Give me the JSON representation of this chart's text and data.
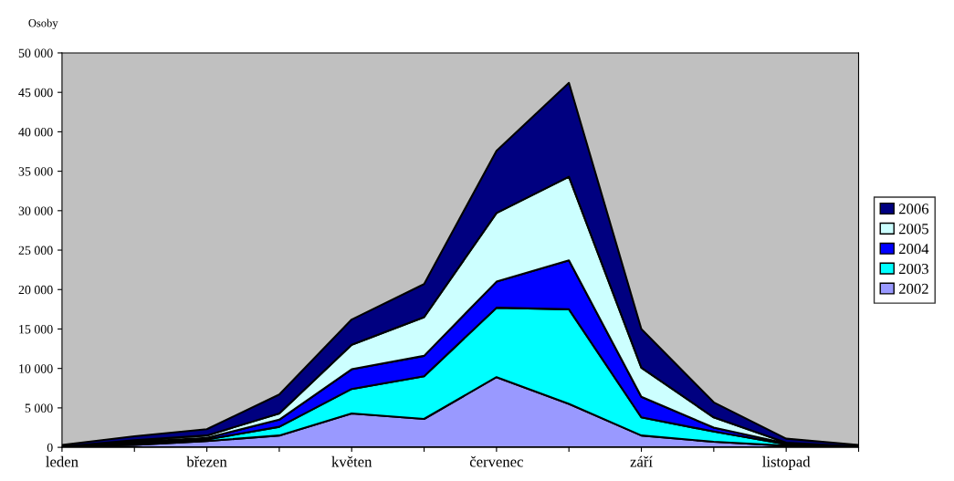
{
  "chart_data": {
    "type": "area",
    "stacked": true,
    "ylabel": "Osoby",
    "categories": [
      "leden",
      null,
      "březen",
      null,
      "květen",
      null,
      "červenec",
      null,
      "září",
      null,
      "listopad",
      null
    ],
    "series": [
      {
        "name": "2002",
        "color": "#9999ff",
        "values": [
          100,
          300,
          800,
          1500,
          4300,
          3600,
          8900,
          5500,
          1500,
          700,
          200,
          100
        ]
      },
      {
        "name": "2003",
        "color": "#00ffff",
        "values": [
          0,
          200,
          200,
          1100,
          3100,
          5400,
          8800,
          12000,
          2300,
          1300,
          200,
          0
        ]
      },
      {
        "name": "2004",
        "color": "#0000ff",
        "values": [
          0,
          200,
          200,
          900,
          2500,
          2600,
          3300,
          6200,
          2600,
          500,
          100,
          0
        ]
      },
      {
        "name": "2005",
        "color": "#ccffff",
        "values": [
          0,
          200,
          300,
          800,
          3100,
          4900,
          8700,
          10600,
          3700,
          1300,
          100,
          0
        ]
      },
      {
        "name": "2006",
        "color": "#000080",
        "values": [
          200,
          500,
          800,
          2400,
          3200,
          4200,
          7900,
          11900,
          4900,
          1900,
          500,
          200
        ]
      }
    ],
    "ylim": [
      0,
      50000
    ],
    "yticks": [
      0,
      {
        "value": 5000,
        "label": "5 000"
      },
      {
        "value": 10000,
        "label": "10 000"
      },
      {
        "value": 15000,
        "label": "15 000"
      },
      {
        "value": 20000,
        "label": "20 000"
      },
      {
        "value": 25000,
        "label": "25 000"
      },
      {
        "value": 30000,
        "label": "30 000"
      },
      {
        "value": 35000,
        "label": "35 000"
      },
      {
        "value": 40000,
        "label": "40 000"
      },
      {
        "value": 45000,
        "label": "45 000"
      },
      {
        "value": 50000,
        "label": "50 000"
      }
    ],
    "grid": false,
    "legend": "right"
  }
}
